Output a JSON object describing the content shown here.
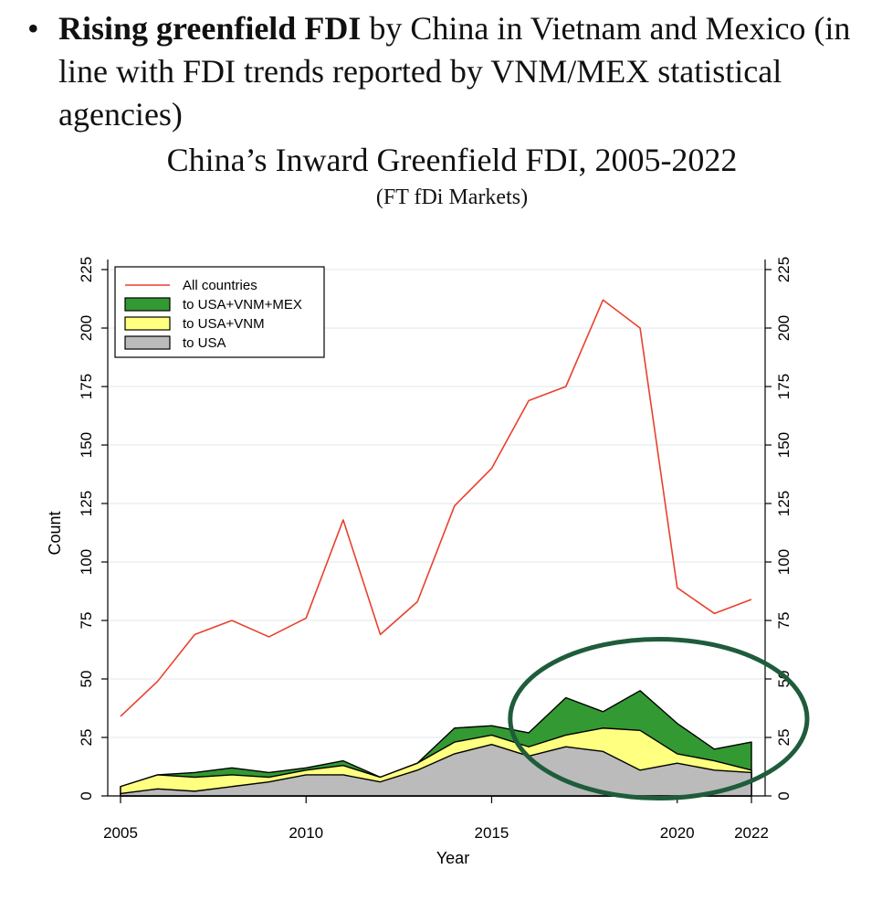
{
  "bullet": {
    "symbol": "•",
    "bold_text": "Rising greenfield FDI",
    "rest_text": " by China in Vietnam and Mexico (in line with FDI trends reported by VNM/MEX statistical agencies)"
  },
  "chart_title": "China’s Inward Greenfield FDI, 2005-2022",
  "chart_subtitle": "(FT fDi Markets)",
  "chart_data": {
    "type": "area",
    "title": "China’s Inward Greenfield FDI, 2005-2022",
    "subtitle": "(FT fDi Markets)",
    "xlabel": "Year",
    "ylabel": "Count",
    "x": [
      2005,
      2006,
      2007,
      2008,
      2009,
      2010,
      2011,
      2012,
      2013,
      2014,
      2015,
      2016,
      2017,
      2018,
      2019,
      2020,
      2021,
      2022
    ],
    "xticks": [
      2005,
      2010,
      2015,
      2020,
      2022
    ],
    "yticks": [
      0,
      25,
      50,
      75,
      100,
      125,
      150,
      175,
      200,
      225
    ],
    "ylim": [
      0,
      225
    ],
    "xlim": [
      2005,
      2022
    ],
    "grid": true,
    "legend_position": "top-left",
    "series": [
      {
        "name": "All countries",
        "kind": "line",
        "color": "#e8412d",
        "values": [
          34,
          49,
          69,
          75,
          68,
          76,
          118,
          69,
          83,
          124,
          140,
          169,
          175,
          212,
          200,
          89,
          78,
          84
        ]
      },
      {
        "name": "to USA+VNM+MEX",
        "kind": "area",
        "color": "#339933",
        "values": [
          4,
          9,
          10,
          12,
          10,
          12,
          15,
          8,
          14,
          29,
          30,
          27,
          42,
          36,
          45,
          31,
          20,
          23
        ]
      },
      {
        "name": "to USA+VNM",
        "kind": "area",
        "color": "#ffff80",
        "values": [
          4,
          9,
          8,
          9,
          8,
          11,
          13,
          8,
          14,
          23,
          26,
          21,
          26,
          29,
          28,
          18,
          15,
          11
        ]
      },
      {
        "name": "to USA",
        "kind": "area",
        "color": "#bbbbbb",
        "values": [
          1,
          3,
          2,
          4,
          6,
          9,
          9,
          6,
          11,
          18,
          22,
          17,
          21,
          19,
          11,
          14,
          11,
          10
        ]
      }
    ],
    "annotations": [
      {
        "type": "ellipse",
        "color": "#1e5c3c",
        "center_x": 2019.5,
        "center_y": 33,
        "radius_x": 4,
        "radius_y": 34
      }
    ]
  }
}
